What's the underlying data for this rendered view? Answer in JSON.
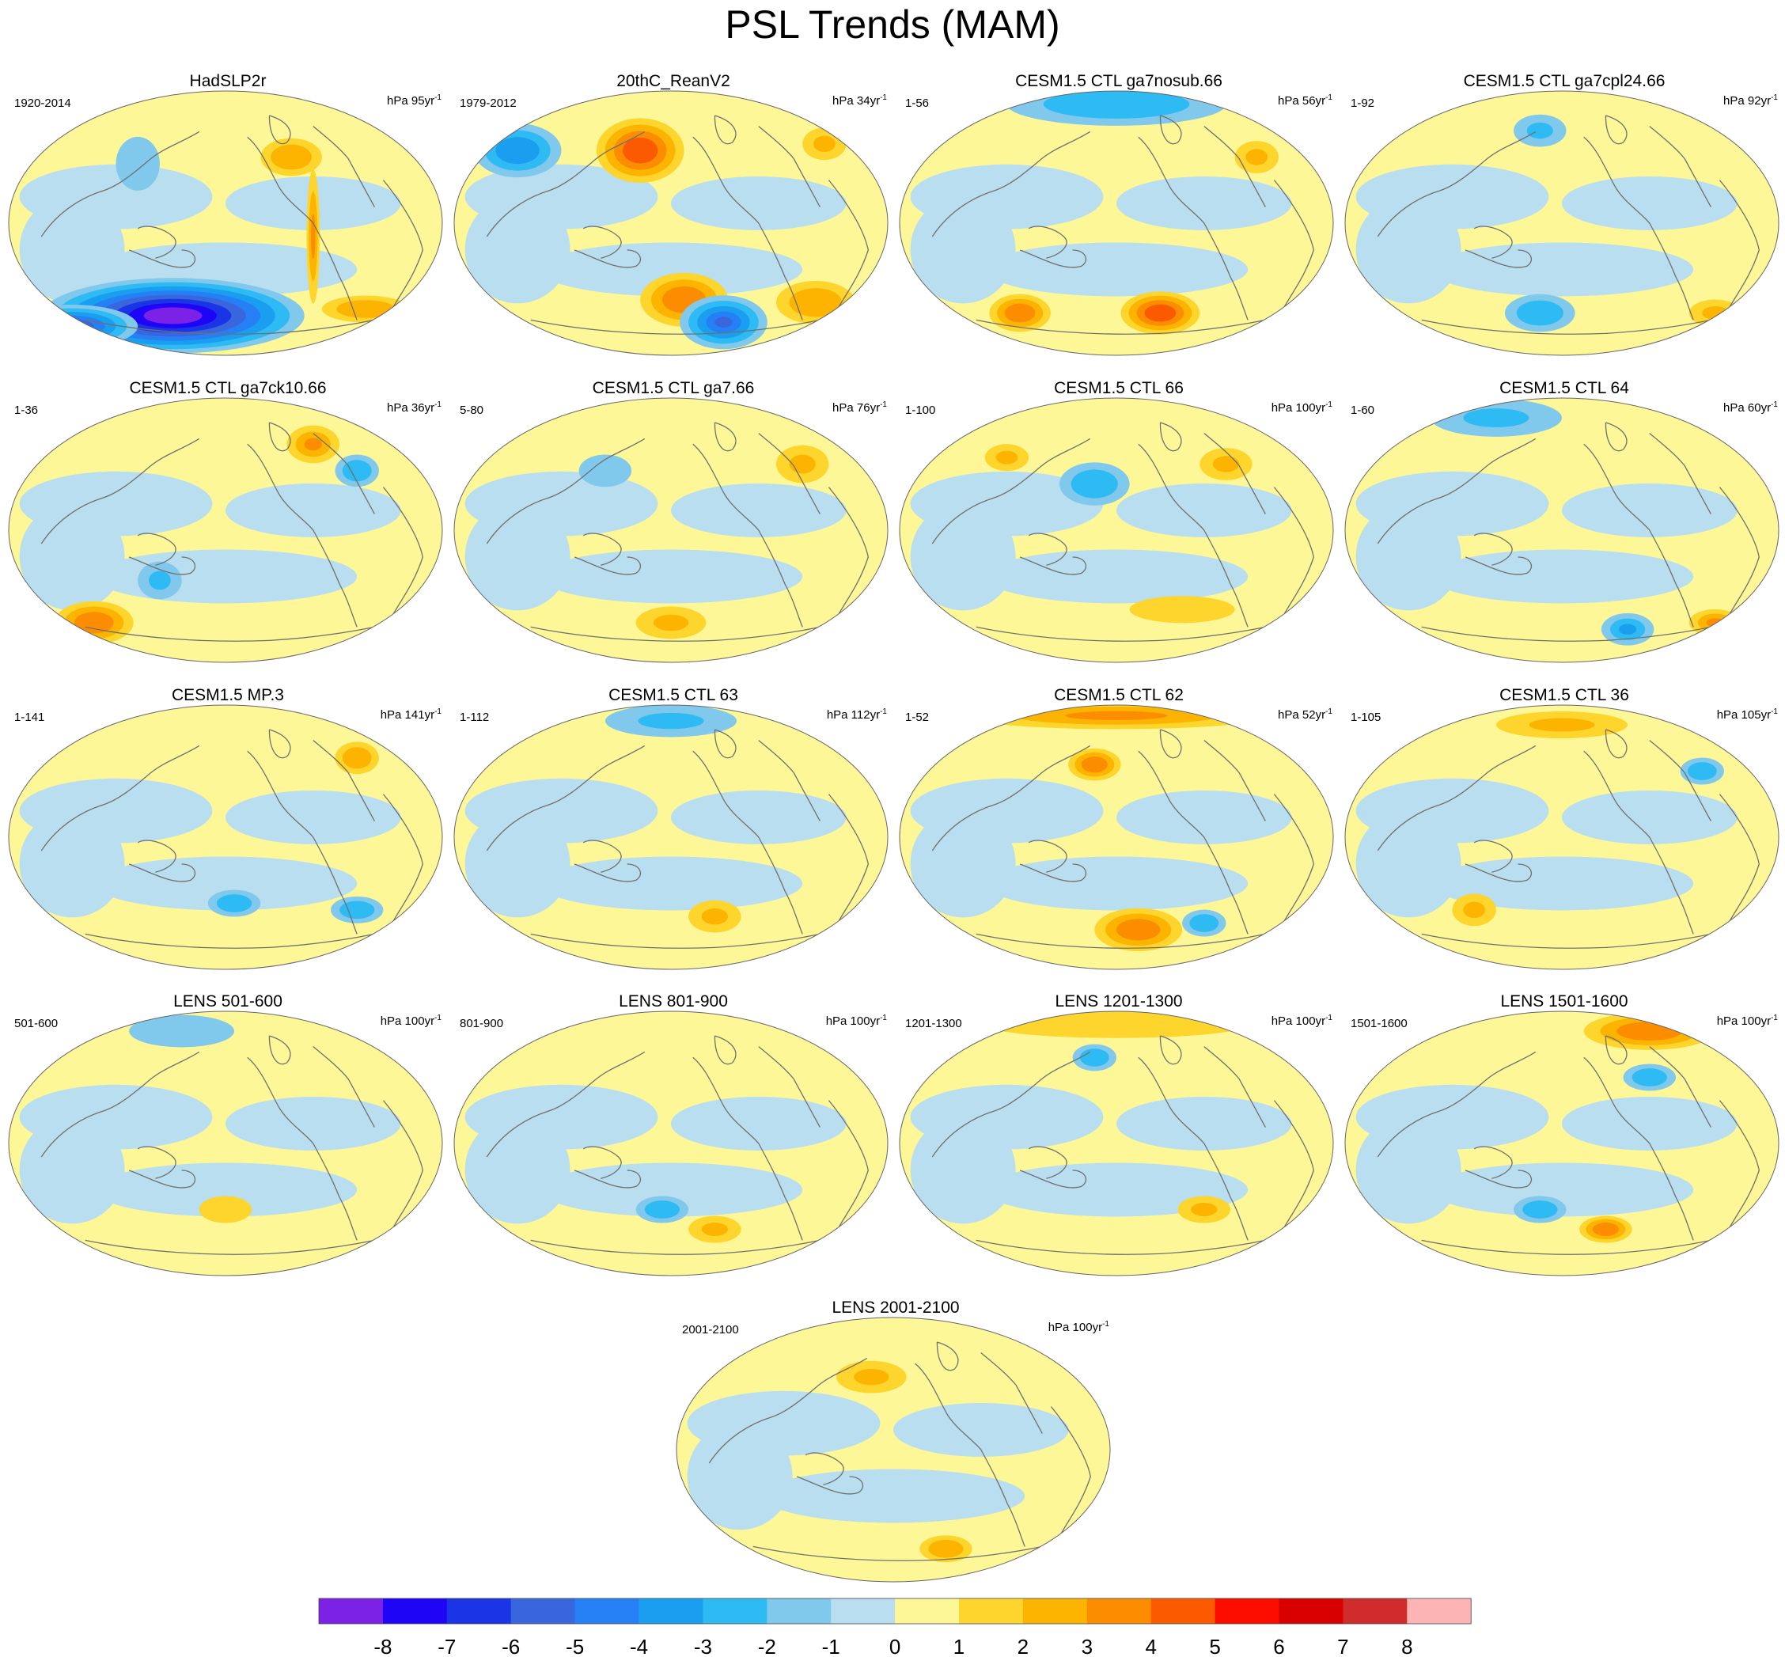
{
  "chart_data": {
    "type": "heatmap",
    "title": "PSL Trends (MAM)",
    "colorbar": {
      "ticks": [
        "-8",
        "-7",
        "-6",
        "-5",
        "-4",
        "-3",
        "-2",
        "-1",
        "0",
        "1",
        "2",
        "3",
        "4",
        "5",
        "6",
        "7",
        "8"
      ],
      "colors": [
        "#7b22e6",
        "#1e05f5",
        "#1a35e6",
        "#3a66dd",
        "#2580f5",
        "#1a9ff0",
        "#2ebaf2",
        "#80c8ec",
        "#b8def0",
        "#fdf798",
        "#fdd52c",
        "#fcb400",
        "#fd8d00",
        "#fc5a00",
        "#fc0d00",
        "#d80000",
        "#d12c2c",
        "#fcb4b4"
      ]
    },
    "panels": [
      {
        "title": "HadSLP2r",
        "range": "1920-2014",
        "units": "hPa 95yr",
        "unit_exp": "-1",
        "anomalies": [
          {
            "lon": 0.38,
            "lat": -0.7,
            "rx": 0.3,
            "ry": 0.14,
            "v": -8.5
          },
          {
            "lon": 0.15,
            "lat": -0.78,
            "rx": 0.15,
            "ry": 0.08,
            "v": -6
          },
          {
            "lon": 0.65,
            "lat": 0.5,
            "rx": 0.07,
            "ry": 0.07,
            "v": 2.5
          },
          {
            "lon": 0.82,
            "lat": -0.65,
            "rx": 0.1,
            "ry": 0.05,
            "v": 2.5
          },
          {
            "lon": 0.3,
            "lat": 0.45,
            "rx": 0.05,
            "ry": 0.1,
            "v": -1.5
          },
          {
            "lon": 0.7,
            "lat": -0.1,
            "rx": 0.015,
            "ry": 0.25,
            "v": 3
          }
        ]
      },
      {
        "title": "20thC_ReanV2",
        "range": "1979-2012",
        "units": "hPa 34yr",
        "unit_exp": "-1",
        "anomalies": [
          {
            "lon": 0.43,
            "lat": 0.55,
            "rx": 0.1,
            "ry": 0.12,
            "v": 4.5
          },
          {
            "lon": 0.15,
            "lat": 0.55,
            "rx": 0.1,
            "ry": 0.1,
            "v": -3.5
          },
          {
            "lon": 0.53,
            "lat": -0.58,
            "rx": 0.1,
            "ry": 0.1,
            "v": 3.5
          },
          {
            "lon": 0.62,
            "lat": -0.75,
            "rx": 0.1,
            "ry": 0.1,
            "v": -5
          },
          {
            "lon": 0.83,
            "lat": -0.6,
            "rx": 0.09,
            "ry": 0.08,
            "v": 2.5
          },
          {
            "lon": 0.85,
            "lat": 0.6,
            "rx": 0.05,
            "ry": 0.06,
            "v": 2
          }
        ]
      },
      {
        "title": "CESM1.5 CTL ga7nosub.66",
        "range": "1-56",
        "units": "hPa 56yr",
        "unit_exp": "-1",
        "anomalies": [
          {
            "lon": 0.6,
            "lat": -0.68,
            "rx": 0.09,
            "ry": 0.08,
            "v": 4.5
          },
          {
            "lon": 0.28,
            "lat": -0.68,
            "rx": 0.07,
            "ry": 0.07,
            "v": 3.5
          },
          {
            "lon": 0.5,
            "lat": 0.9,
            "rx": 0.25,
            "ry": 0.08,
            "v": -2.5
          },
          {
            "lon": 0.82,
            "lat": 0.5,
            "rx": 0.05,
            "ry": 0.06,
            "v": 2
          }
        ]
      },
      {
        "title": "CESM1.5 CTL ga7cpl24.66",
        "range": "1-92",
        "units": "hPa 92yr",
        "unit_exp": "-1",
        "anomalies": [
          {
            "lon": 0.45,
            "lat": -0.68,
            "rx": 0.08,
            "ry": 0.07,
            "v": -2.5
          },
          {
            "lon": 0.85,
            "lat": -0.68,
            "rx": 0.06,
            "ry": 0.05,
            "v": 2
          },
          {
            "lon": 0.45,
            "lat": 0.7,
            "rx": 0.06,
            "ry": 0.06,
            "v": -2
          }
        ]
      },
      {
        "title": "CESM1.5 CTL ga7ck10.66",
        "range": "1-36",
        "units": "hPa 36yr",
        "unit_exp": "-1",
        "anomalies": [
          {
            "lon": 0.2,
            "lat": -0.7,
            "rx": 0.09,
            "ry": 0.08,
            "v": 3.5
          },
          {
            "lon": 0.35,
            "lat": -0.38,
            "rx": 0.05,
            "ry": 0.07,
            "v": -2
          },
          {
            "lon": 0.7,
            "lat": 0.65,
            "rx": 0.06,
            "ry": 0.07,
            "v": 3
          },
          {
            "lon": 0.8,
            "lat": 0.45,
            "rx": 0.05,
            "ry": 0.06,
            "v": -2.5
          }
        ]
      },
      {
        "title": "CESM1.5 CTL ga7.66",
        "range": "5-80",
        "units": "hPa 76yr",
        "unit_exp": "-1",
        "anomalies": [
          {
            "lon": 0.5,
            "lat": -0.7,
            "rx": 0.08,
            "ry": 0.06,
            "v": 2
          },
          {
            "lon": 0.8,
            "lat": 0.5,
            "rx": 0.06,
            "ry": 0.07,
            "v": 2
          },
          {
            "lon": 0.35,
            "lat": 0.45,
            "rx": 0.06,
            "ry": 0.06,
            "v": -1.5
          }
        ]
      },
      {
        "title": "CESM1.5 CTL 66",
        "range": "1-100",
        "units": "hPa 100yr",
        "unit_exp": "-1",
        "anomalies": [
          {
            "lon": 0.45,
            "lat": 0.35,
            "rx": 0.08,
            "ry": 0.08,
            "v": -2.5
          },
          {
            "lon": 0.25,
            "lat": 0.55,
            "rx": 0.05,
            "ry": 0.05,
            "v": 2
          },
          {
            "lon": 0.75,
            "lat": 0.5,
            "rx": 0.06,
            "ry": 0.06,
            "v": 2
          },
          {
            "lon": 0.65,
            "lat": -0.6,
            "rx": 0.12,
            "ry": 0.05,
            "v": 1.5
          }
        ]
      },
      {
        "title": "CESM1.5 CTL 64",
        "range": "1-60",
        "units": "hPa 60yr",
        "unit_exp": "-1",
        "anomalies": [
          {
            "lon": 0.35,
            "lat": 0.85,
            "rx": 0.15,
            "ry": 0.07,
            "v": -2
          },
          {
            "lon": 0.65,
            "lat": -0.75,
            "rx": 0.06,
            "ry": 0.06,
            "v": -3
          },
          {
            "lon": 0.85,
            "lat": -0.7,
            "rx": 0.06,
            "ry": 0.05,
            "v": 3
          }
        ]
      },
      {
        "title": "CESM1.5 MP.3",
        "range": "1-141",
        "units": "hPa 141yr",
        "unit_exp": "-1",
        "anomalies": [
          {
            "lon": 0.52,
            "lat": -0.5,
            "rx": 0.06,
            "ry": 0.05,
            "v": -2.5
          },
          {
            "lon": 0.8,
            "lat": -0.55,
            "rx": 0.06,
            "ry": 0.05,
            "v": -2.5
          },
          {
            "lon": 0.8,
            "lat": 0.6,
            "rx": 0.05,
            "ry": 0.06,
            "v": 2.5
          }
        ]
      },
      {
        "title": "CESM1.5 CTL 63",
        "range": "1-112",
        "units": "hPa 112yr",
        "unit_exp": "-1",
        "anomalies": [
          {
            "lon": 0.5,
            "lat": 0.88,
            "rx": 0.15,
            "ry": 0.06,
            "v": -2
          },
          {
            "lon": 0.6,
            "lat": -0.6,
            "rx": 0.06,
            "ry": 0.06,
            "v": 2
          }
        ]
      },
      {
        "title": "CESM1.5 CTL 62",
        "range": "1-52",
        "units": "hPa 52yr",
        "unit_exp": "-1",
        "anomalies": [
          {
            "lon": 0.5,
            "lat": 0.92,
            "rx": 0.35,
            "ry": 0.05,
            "v": 3
          },
          {
            "lon": 0.45,
            "lat": 0.55,
            "rx": 0.06,
            "ry": 0.06,
            "v": 3.5
          },
          {
            "lon": 0.55,
            "lat": -0.7,
            "rx": 0.1,
            "ry": 0.08,
            "v": 3.5
          },
          {
            "lon": 0.7,
            "lat": -0.65,
            "rx": 0.05,
            "ry": 0.05,
            "v": -2.5
          }
        ]
      },
      {
        "title": "CESM1.5 CTL 36",
        "range": "1-105",
        "units": "hPa 105yr",
        "unit_exp": "-1",
        "anomalies": [
          {
            "lon": 0.5,
            "lat": 0.85,
            "rx": 0.15,
            "ry": 0.05,
            "v": 2
          },
          {
            "lon": 0.82,
            "lat": 0.5,
            "rx": 0.05,
            "ry": 0.05,
            "v": -2.5
          },
          {
            "lon": 0.3,
            "lat": -0.55,
            "rx": 0.05,
            "ry": 0.06,
            "v": 2
          }
        ]
      },
      {
        "title": "LENS 501-600",
        "range": "501-600",
        "units": "hPa 100yr",
        "unit_exp": "-1",
        "anomalies": [
          {
            "lon": 0.4,
            "lat": 0.85,
            "rx": 0.12,
            "ry": 0.06,
            "v": -1.5
          },
          {
            "lon": 0.5,
            "lat": -0.5,
            "rx": 0.06,
            "ry": 0.05,
            "v": 1.5
          }
        ]
      },
      {
        "title": "LENS 801-900",
        "range": "801-900",
        "units": "hPa 100yr",
        "unit_exp": "-1",
        "anomalies": [
          {
            "lon": 0.48,
            "lat": -0.5,
            "rx": 0.06,
            "ry": 0.05,
            "v": -2.5
          },
          {
            "lon": 0.6,
            "lat": -0.65,
            "rx": 0.06,
            "ry": 0.05,
            "v": 2
          }
        ]
      },
      {
        "title": "LENS 1201-1300",
        "range": "1201-1300",
        "units": "hPa 100yr",
        "unit_exp": "-1",
        "anomalies": [
          {
            "lon": 0.5,
            "lat": 0.9,
            "rx": 0.3,
            "ry": 0.05,
            "v": 1.5
          },
          {
            "lon": 0.45,
            "lat": 0.65,
            "rx": 0.05,
            "ry": 0.05,
            "v": -2.5
          },
          {
            "lon": 0.7,
            "lat": -0.5,
            "rx": 0.06,
            "ry": 0.05,
            "v": 2
          }
        ]
      },
      {
        "title": "LENS 1501-1600",
        "range": "1501-1600",
        "units": "hPa 100yr",
        "unit_exp": "-1",
        "anomalies": [
          {
            "lon": 0.7,
            "lat": 0.85,
            "rx": 0.15,
            "ry": 0.07,
            "v": 3.5
          },
          {
            "lon": 0.7,
            "lat": 0.5,
            "rx": 0.06,
            "ry": 0.05,
            "v": -2.5
          },
          {
            "lon": 0.45,
            "lat": -0.5,
            "rx": 0.06,
            "ry": 0.05,
            "v": -2.5
          },
          {
            "lon": 0.6,
            "lat": -0.65,
            "rx": 0.06,
            "ry": 0.05,
            "v": 3.5
          }
        ]
      },
      {
        "title": "LENS 2001-2100",
        "range": "2001-2100",
        "units": "hPa 100yr",
        "unit_exp": "-1",
        "anomalies": [
          {
            "lon": 0.45,
            "lat": 0.55,
            "rx": 0.08,
            "ry": 0.06,
            "v": 2
          },
          {
            "lon": 0.62,
            "lat": -0.75,
            "rx": 0.06,
            "ry": 0.05,
            "v": 2.5
          }
        ]
      }
    ]
  }
}
